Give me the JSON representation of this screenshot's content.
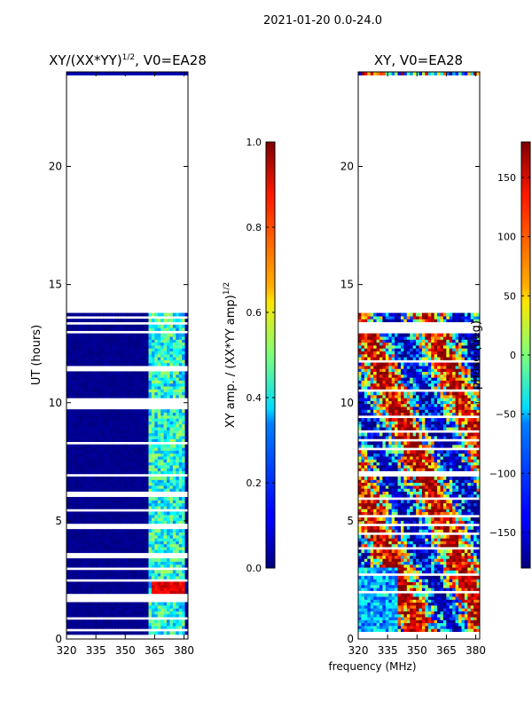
{
  "suptitle": "2021-01-20 0.0-24.0",
  "colors": {
    "background": "#ffffff",
    "axis": "#000000",
    "jet_low": "#00007f",
    "jet_high": "#7f0000"
  },
  "chart_data": [
    {
      "type": "heatmap",
      "title_main": "XY/(XX*YY)",
      "title_sup": "1/2",
      "title_tail": ", V0=EA28",
      "xlabel": "",
      "ylabel": "UT (hours)",
      "xlim": [
        320,
        382
      ],
      "ylim": [
        0,
        24
      ],
      "xticks": [
        320,
        335,
        350,
        365,
        380
      ],
      "yticks": [
        0,
        5,
        10,
        15,
        20
      ],
      "data_extent_hours": [
        0.2,
        13.8
      ],
      "top_sliver_hours": [
        23.85,
        24.0
      ],
      "colorbar": {
        "label_main": "XY amp. / (XX*YY amp)",
        "label_sup": "1/2",
        "min": 0.0,
        "max": 1.0,
        "ticks": [
          0.0,
          0.2,
          0.4,
          0.6,
          0.8,
          1.0
        ],
        "tick_labels": [
          "0.0",
          "0.2",
          "0.4",
          "0.6",
          "0.8",
          "1.0"
        ]
      }
    },
    {
      "type": "heatmap",
      "title_main": "XY, V0=EA28",
      "xlabel": "frequency (MHz)",
      "ylabel": "",
      "xlim": [
        320,
        382
      ],
      "ylim": [
        0,
        24
      ],
      "xticks": [
        320,
        335,
        350,
        365,
        380
      ],
      "yticks": [
        0,
        5,
        10,
        15,
        20
      ],
      "data_extent_hours": [
        0.2,
        13.8
      ],
      "top_sliver_hours": [
        23.85,
        24.0
      ],
      "colorbar": {
        "label_main": "phase (deg)",
        "min": -180,
        "max": 180,
        "ticks": [
          -150,
          -100,
          -50,
          0,
          50,
          100,
          150
        ],
        "tick_labels": [
          "−150",
          "−100",
          "−50",
          "0",
          "50",
          "100",
          "150"
        ]
      }
    }
  ]
}
